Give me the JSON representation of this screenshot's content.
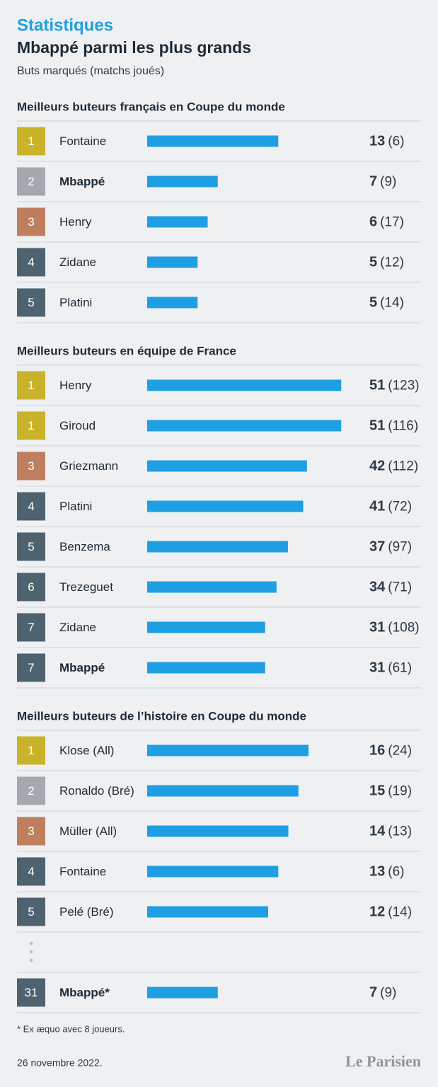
{
  "kicker": "Statistiques",
  "title": "Mbappé parmi les plus grands",
  "subtitle": "Buts marqués (matchs joués)",
  "footnote": "* Ex æquo avec 8 joueurs.",
  "date": "26 novembre 2022.",
  "logo": "Le Parisien",
  "chart_data": [
    {
      "type": "bar",
      "orientation": "horizontal",
      "title": "Meilleurs buteurs français en Coupe du monde",
      "ranks": [
        1,
        2,
        3,
        4,
        5
      ],
      "categories": [
        "Fontaine",
        "Mbappé",
        "Henry",
        "Zidane",
        "Platini"
      ],
      "values": [
        13,
        7,
        6,
        5,
        5
      ],
      "matches": [
        "(6)",
        "(9)",
        "(17)",
        "(12)",
        "(14)"
      ],
      "highlight_index": 1,
      "xlim": [
        0,
        20
      ],
      "color": "#1f9fe3",
      "rank_colors": [
        "#c8b32b",
        "#a3a9ae",
        "#bf7f5f",
        "#4e6270"
      ]
    },
    {
      "type": "bar",
      "orientation": "horizontal",
      "title": "Meilleurs buteurs en équipe de France",
      "ranks": [
        1,
        1,
        3,
        4,
        5,
        6,
        7,
        7
      ],
      "categories": [
        "Henry",
        "Giroud",
        "Griezmann",
        "Platini",
        "Benzema",
        "Trezeguet",
        "Zidane",
        "Mbappé"
      ],
      "values": [
        51,
        51,
        42,
        41,
        37,
        34,
        31,
        31
      ],
      "matches": [
        "(123)",
        "(116)",
        "(112)",
        "(72)",
        "(97)",
        "(71)",
        "(108)",
        "(61)"
      ],
      "highlight_index": 7,
      "xlim": [
        0,
        53
      ],
      "color": "#1f9fe3",
      "rank_colors": [
        "#c8b32b",
        "#a3a9ae",
        "#bf7f5f",
        "#4e6270"
      ]
    },
    {
      "type": "bar",
      "orientation": "horizontal",
      "title": "Meilleurs buteurs de l’histoire en Coupe du monde",
      "ranks": [
        1,
        2,
        3,
        4,
        5,
        31
      ],
      "categories": [
        "Klose (All)",
        "Ronaldo (Bré)",
        "Müller (All)",
        "Fontaine",
        "Pelé (Bré)",
        "Mbappé*"
      ],
      "values": [
        16,
        15,
        14,
        13,
        12,
        7
      ],
      "matches": [
        "(24)",
        "(19)",
        "(13)",
        "(6)",
        "(14)",
        "(9)"
      ],
      "highlight_index": 5,
      "gap_before_last": true,
      "xlim": [
        0,
        20
      ],
      "color": "#1f9fe3",
      "rank_colors": [
        "#c8b32b",
        "#a3a9ae",
        "#bf7f5f",
        "#4e6270"
      ]
    }
  ]
}
